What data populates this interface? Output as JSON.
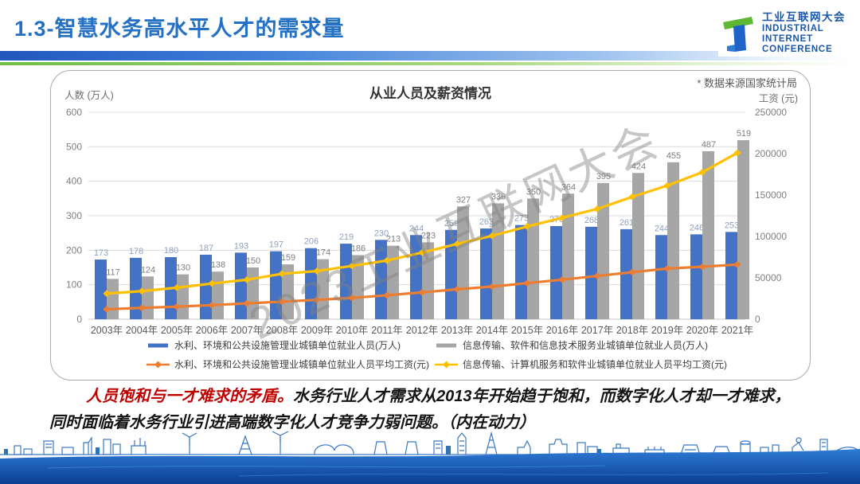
{
  "slide": {
    "title": "1.3-智慧水务高水平人才的需求量",
    "source_note": "* 数据来源国家统计局",
    "watermark": "2023工业互联网大会"
  },
  "logo": {
    "name_cn": "工业互联网大会",
    "en_line1": "INDUSTRIAL",
    "en_line2": "INTERNET",
    "en_line3": "CONFERENCE"
  },
  "colors": {
    "title_blue": "#2470C2",
    "red_highlight": "#C00000",
    "bar_blue": "#4472C4",
    "bar_gray": "#A6A6A6",
    "line_orange": "#ED7D31",
    "line_yellow": "#FFC000"
  },
  "chart_data": {
    "type": "bar",
    "subtype": "combo-bar-line",
    "title": "从业人员及薪资情况",
    "left_axis": {
      "label": "人数 (万人)",
      "min": 0,
      "max": 600,
      "ticks": [
        0,
        100,
        200,
        300,
        400,
        500,
        600
      ]
    },
    "right_axis": {
      "label": "工资 (元)",
      "min": 0,
      "max": 250000,
      "ticks": [
        0,
        50000,
        100000,
        150000,
        200000,
        250000
      ]
    },
    "grid": true,
    "legend_position": "bottom",
    "categories": [
      "2003年",
      "2004年",
      "2005年",
      "2006年",
      "2007年",
      "2008年",
      "2009年",
      "2010年",
      "2011年",
      "2012年",
      "2013年",
      "2014年",
      "2015年",
      "2016年",
      "2017年",
      "2018年",
      "2019年",
      "2020年",
      "2021年"
    ],
    "series": [
      {
        "key": "water-employment",
        "name": "水利、环境和公共设施管理业城镇单位就业人员(万人)",
        "type": "bar",
        "axis": "left",
        "color": "#4472C4",
        "label_color": "#8FA0BE",
        "values": [
          173,
          178,
          180,
          187,
          193,
          197,
          206,
          219,
          230,
          244,
          259,
          263,
          273,
          270,
          268,
          261,
          244,
          246,
          253
        ]
      },
      {
        "key": "it-employment",
        "name": "信息传输、软件和信息技术服务业城镇单位就业人员(万人)",
        "type": "bar",
        "axis": "left",
        "color": "#A6A6A6",
        "label_color": "#7F7F7F",
        "values": [
          117,
          124,
          130,
          138,
          150,
          159,
          174,
          186,
          213,
          223,
          327,
          336,
          350,
          364,
          395,
          424,
          455,
          487,
          519
        ]
      },
      {
        "key": "water-wage",
        "name": "水利、环境和公共设施管理业城镇单位就业人员平均工资(元)",
        "type": "line",
        "axis": "right",
        "color": "#ED7D31",
        "values": [
          12000,
          13700,
          15200,
          17000,
          19100,
          21200,
          23400,
          25800,
          28900,
          32400,
          36200,
          39400,
          43600,
          47800,
          52200,
          56800,
          61200,
          63400,
          66000
        ]
      },
      {
        "key": "it-wage",
        "name": "信息传输、计算机服务和软件业城镇单位就业人员平均工资(元)",
        "type": "line",
        "axis": "right",
        "color": "#FFC000",
        "values": [
          31000,
          33900,
          38100,
          43100,
          47700,
          54900,
          58200,
          64400,
          70900,
          80500,
          90900,
          100800,
          112000,
          122500,
          133200,
          147800,
          161400,
          177500,
          201000
        ]
      }
    ]
  },
  "commentary": {
    "highlight": "人员饱和与一才难求的矛盾。",
    "line1_rest": "水务行业人才需求从2013年开始趋于饱和，而数字化人才却一才难求，",
    "line2": "同时面临着水务行业引进高端数字化人才竞争力弱问题。（内在动力）"
  }
}
